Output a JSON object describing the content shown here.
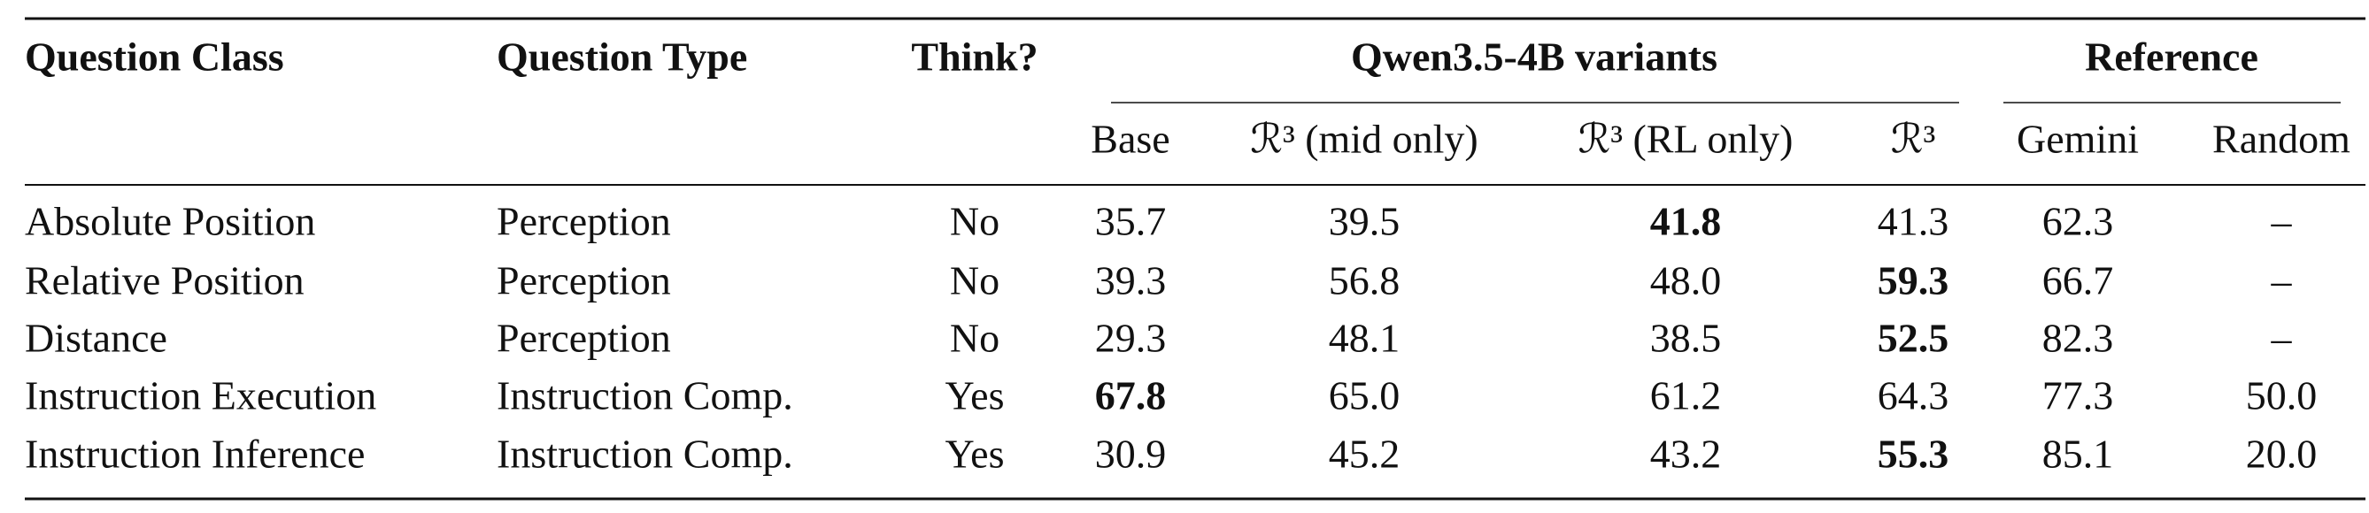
{
  "table": {
    "group_headers": [
      "Qwen3.5-4B variants",
      "Reference"
    ],
    "columns": [
      "Question Class",
      "Question Type",
      "Think?",
      "Base",
      "ℛ³ (mid only)",
      "ℛ³ (RL only)",
      "ℛ³",
      "Gemini",
      "Random"
    ],
    "rows": [
      [
        "Absolute Position",
        "Perception",
        "No",
        "35.7",
        "39.5",
        "41.8",
        "41.3",
        "62.3",
        "–"
      ],
      [
        "Relative Position",
        "Perception",
        "No",
        "39.3",
        "56.8",
        "48.0",
        "59.3",
        "66.7",
        "–"
      ],
      [
        "Distance",
        "Perception",
        "No",
        "29.3",
        "48.1",
        "38.5",
        "52.5",
        "82.3",
        "–"
      ],
      [
        "Instruction Execution",
        "Instruction Comp.",
        "Yes",
        "67.8",
        "65.0",
        "61.2",
        "64.3",
        "77.3",
        "50.0"
      ],
      [
        "Instruction Inference",
        "Instruction Comp.",
        "Yes",
        "30.9",
        "45.2",
        "43.2",
        "55.3",
        "85.1",
        "20.0"
      ]
    ],
    "bold": [
      [
        0,
        5
      ],
      [
        1,
        6
      ],
      [
        2,
        6
      ],
      [
        3,
        3
      ],
      [
        4,
        6
      ]
    ]
  }
}
